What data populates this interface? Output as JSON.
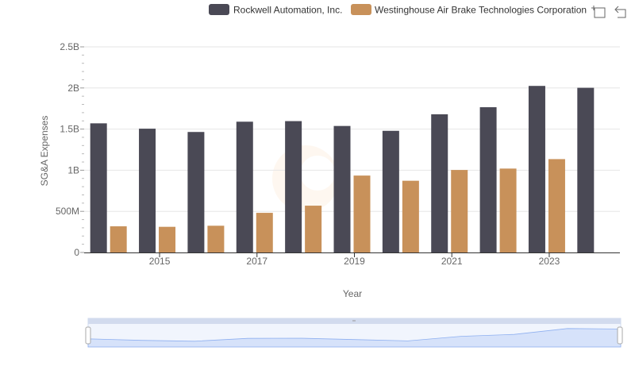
{
  "chart_data": {
    "type": "bar",
    "xlabel": "Year",
    "ylabel": "SG&A Expenses",
    "ylim": [
      0,
      2500000000
    ],
    "y_ticks": [
      {
        "value": 0,
        "label": "0"
      },
      {
        "value": 500000000,
        "label": "500M"
      },
      {
        "value": 1000000000,
        "label": "1B"
      },
      {
        "value": 1500000000,
        "label": "1.5B"
      },
      {
        "value": 2000000000,
        "label": "2B"
      },
      {
        "value": 2500000000,
        "label": "2.5B"
      }
    ],
    "categories": [
      "2014",
      "2015",
      "2016",
      "2017",
      "2018",
      "2019",
      "2020",
      "2021",
      "2022",
      "2023",
      "2024"
    ],
    "x_tick_labels": [
      "2015",
      "2017",
      "2019",
      "2021",
      "2023"
    ],
    "legend_position": "top-right",
    "grid": true,
    "series": [
      {
        "name": "Rockwell Automation, Inc.",
        "color": "#4a4955",
        "values": [
          1570000000,
          1505000000,
          1465000000,
          1590000000,
          1597000000,
          1538000000,
          1479000000,
          1680000000,
          1766000000,
          2025000000,
          2002000000
        ]
      },
      {
        "name": "Westinghouse Air Brake Technologies Corporation",
        "color": "#c8915a",
        "values": [
          318000000,
          312000000,
          325000000,
          482000000,
          569000000,
          935000000,
          872000000,
          1003000000,
          1020000000,
          1135000000,
          null
        ]
      }
    ],
    "navigator_color": "#d6e2fa"
  }
}
